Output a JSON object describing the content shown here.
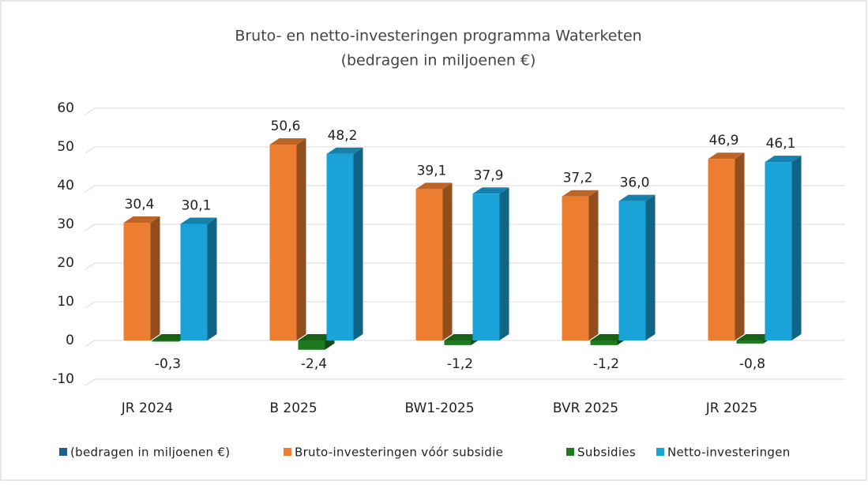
{
  "chart_data": {
    "type": "bar3d",
    "title": "Bruto- en netto-investeringen programma Waterketen",
    "subtitle": "(bedragen in miljoenen €)",
    "categories": [
      "JR 2024",
      "B 2025",
      "BW1-2025",
      "BVR 2025",
      "JR 2025"
    ],
    "series": [
      {
        "name": "(bedragen in miljoenen €)",
        "color": "#1f5f8b",
        "values": [
          null,
          null,
          null,
          null,
          null
        ]
      },
      {
        "name": "Bruto-investeringen vóór subsidie",
        "color": "#ed7d31",
        "values": [
          30.4,
          50.6,
          39.1,
          37.2,
          46.9
        ],
        "value_labels": [
          "30,4",
          "50,6",
          "39,1",
          "37,2",
          "46,9"
        ]
      },
      {
        "name": "Subsidies",
        "color": "#1e7a1e",
        "values": [
          -0.3,
          -2.4,
          -1.2,
          -1.2,
          -0.8
        ],
        "value_labels": [
          "-0,3",
          "-2,4",
          "-1,2",
          "-1,2",
          "-0,8"
        ]
      },
      {
        "name": "Netto-investeringen",
        "color": "#1aa3d9",
        "values": [
          30.1,
          48.2,
          37.9,
          36.0,
          46.1
        ],
        "value_labels": [
          "30,1",
          "48,2",
          "37,9",
          "36,0",
          "46,1"
        ]
      }
    ],
    "ylim": [
      -10,
      60
    ],
    "yticks": [
      -10,
      0,
      10,
      20,
      30,
      40,
      50,
      60
    ],
    "grid": true,
    "legend": "bottom"
  }
}
